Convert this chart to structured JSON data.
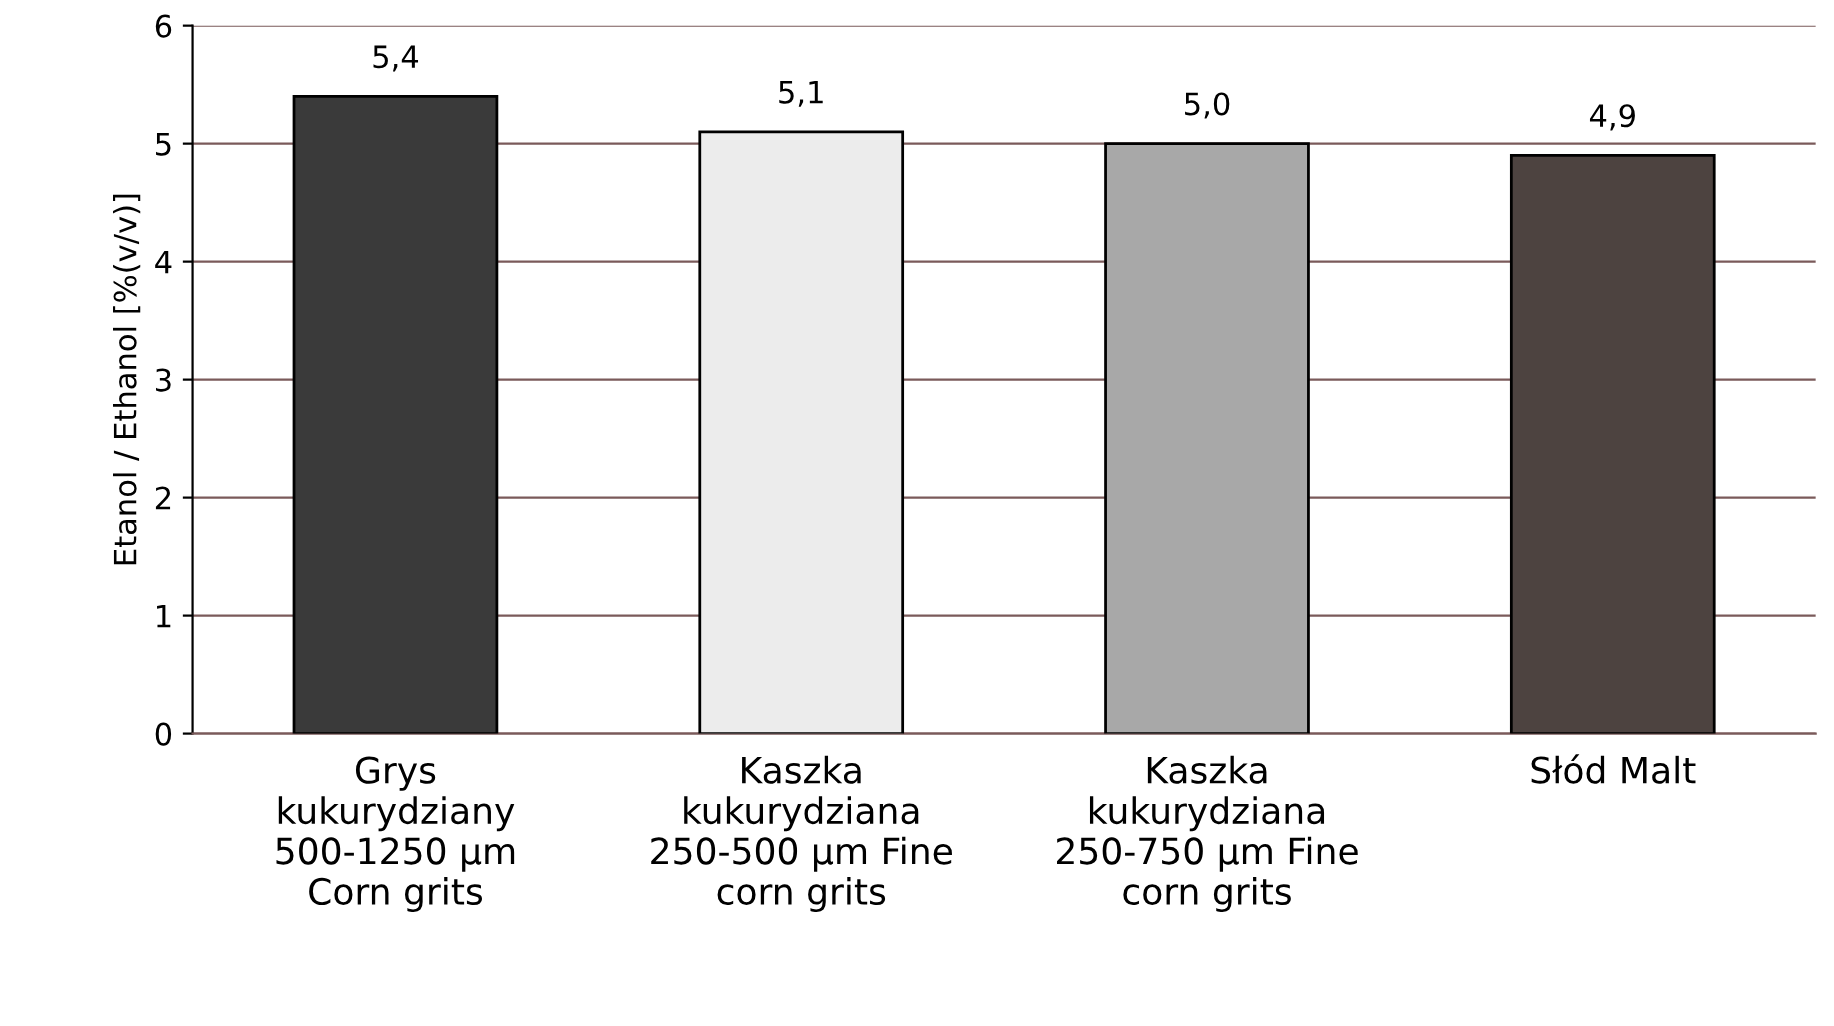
{
  "chart_data": {
    "type": "bar",
    "ylabel": "Etanol / Ethanol [%(v/v)]",
    "categories": [
      "Grys\nkukurydziany\n500-1250 µm\nCorn grits",
      "Kaszka\nkukurydziana\n250-500 µm Fine\ncorn grits",
      "Kaszka\nkukurydziana\n250-750 µm Fine\ncorn grits",
      "Słód Malt"
    ],
    "values": [
      5.4,
      5.1,
      5.0,
      4.9
    ],
    "value_labels": [
      "5,4",
      "5,1",
      "5,0",
      "4,9"
    ],
    "colors": [
      "#3a3a3a",
      "#ececec",
      "#a8a8a8",
      "#4d4340"
    ],
    "ylim": [
      0,
      6
    ],
    "yticks": [
      0,
      1,
      2,
      3,
      4,
      5,
      6
    ],
    "grid": "y"
  }
}
